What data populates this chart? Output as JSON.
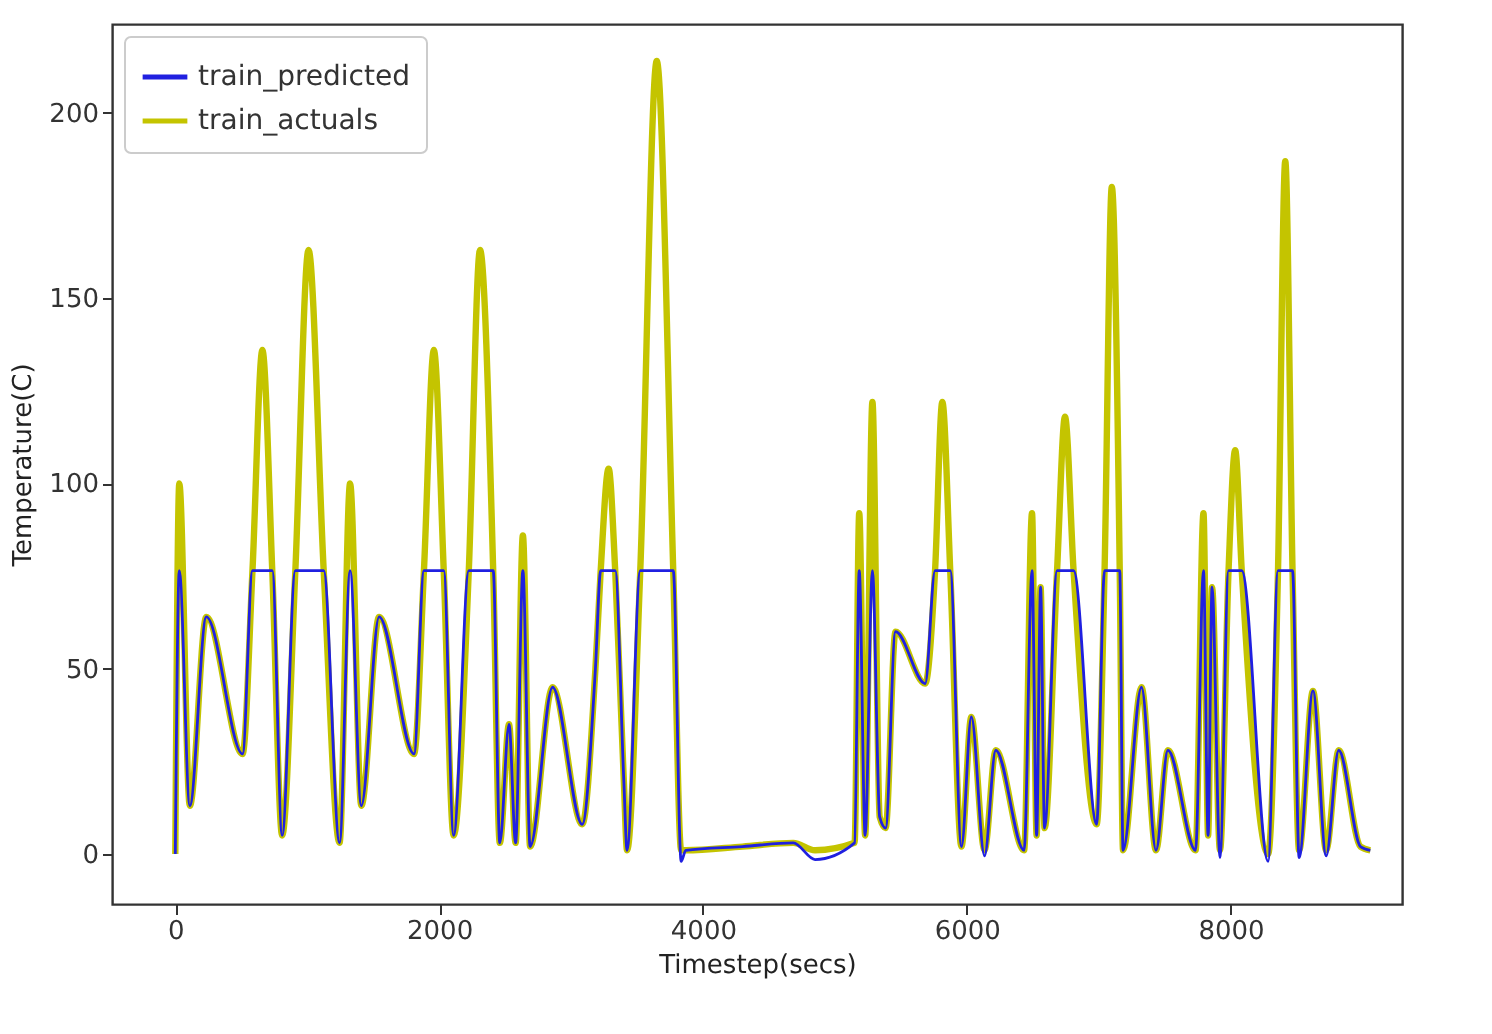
{
  "chart_data": {
    "type": "line",
    "xlabel": "Timestep(secs)",
    "ylabel": "Temperature(C)",
    "xlim": [
      -480,
      9300
    ],
    "ylim": [
      -13.5,
      224
    ],
    "xticks": [
      0,
      2000,
      4000,
      6000,
      8000
    ],
    "yticks": [
      0,
      50,
      100,
      150,
      200
    ],
    "legend": "top left",
    "series": [
      {
        "name": "train_predicted",
        "color": "#2020e0",
        "x": [
          0,
          30,
          110,
          235,
          510,
          585,
          660,
          735,
          810,
          910,
          1010,
          1125,
          1245,
          1325,
          1410,
          1545,
          1810,
          1885,
          1960,
          2035,
          2110,
          2225,
          2310,
          2410,
          2460,
          2530,
          2580,
          2635,
          2690,
          2860,
          3085,
          3185,
          3225,
          3285,
          3335,
          3400,
          3425,
          3525,
          3650,
          3775,
          3835,
          3870,
          4300,
          4685,
          4850,
          5150,
          5185,
          5230,
          5285,
          5340,
          5385,
          5460,
          5685,
          5760,
          5815,
          5875,
          5960,
          6035,
          6135,
          6220,
          6435,
          6495,
          6530,
          6560,
          6590,
          6685,
          6745,
          6810,
          6985,
          7045,
          7100,
          7160,
          7185,
          7325,
          7435,
          7525,
          7735,
          7795,
          7830,
          7860,
          7920,
          7985,
          8035,
          8085,
          8285,
          8360,
          8415,
          8470,
          8520,
          8625,
          8725,
          8820,
          8985,
          9060
        ],
        "values": [
          0,
          76.5,
          13,
          64,
          27,
          76.5,
          76.5,
          76.5,
          5,
          76.5,
          76.5,
          76.5,
          3,
          76.5,
          13,
          64,
          27,
          76.5,
          76.5,
          76.5,
          5,
          76.5,
          76.5,
          76.5,
          3,
          35,
          3,
          76.5,
          2,
          45,
          8,
          50,
          76.5,
          76.5,
          76.5,
          20,
          1,
          76.5,
          76.5,
          76.5,
          -2,
          1,
          2,
          3,
          -1.5,
          3,
          76.5,
          5,
          76.5,
          10,
          7,
          60,
          46,
          76.5,
          76.5,
          76.5,
          2,
          37,
          -0.5,
          28,
          1,
          76.5,
          5,
          72,
          7,
          76.5,
          76.5,
          76.5,
          8,
          76.5,
          76.5,
          76.5,
          1,
          45,
          1,
          28,
          1,
          76.5,
          5,
          72,
          -1,
          76.5,
          76.5,
          76.5,
          -2,
          76.5,
          76.5,
          76.5,
          -1,
          44,
          -0.5,
          28,
          2,
          1
        ]
      },
      {
        "name": "train_actuals",
        "color": "#c4c400",
        "x": [
          0,
          30,
          110,
          235,
          510,
          585,
          660,
          735,
          810,
          910,
          1010,
          1125,
          1245,
          1325,
          1410,
          1545,
          1810,
          1885,
          1960,
          2035,
          2110,
          2225,
          2310,
          2410,
          2460,
          2530,
          2580,
          2635,
          2690,
          2860,
          3085,
          3185,
          3225,
          3285,
          3335,
          3400,
          3425,
          3525,
          3650,
          3775,
          3835,
          3870,
          4300,
          4685,
          4850,
          5150,
          5185,
          5230,
          5285,
          5340,
          5385,
          5460,
          5685,
          5760,
          5815,
          5875,
          5960,
          6035,
          6135,
          6220,
          6435,
          6495,
          6530,
          6560,
          6590,
          6685,
          6745,
          6810,
          6985,
          7045,
          7100,
          7160,
          7185,
          7325,
          7435,
          7525,
          7735,
          7795,
          7830,
          7860,
          7920,
          7985,
          8035,
          8085,
          8285,
          8360,
          8415,
          8470,
          8520,
          8625,
          8725,
          8820,
          8985,
          9060
        ],
        "values": [
          0,
          100,
          13,
          64,
          27,
          76.5,
          136,
          76.5,
          5,
          76.5,
          163,
          76.5,
          3,
          100,
          13,
          64,
          27,
          76.5,
          136,
          76.5,
          5,
          76.5,
          163,
          76.5,
          3,
          35,
          3,
          86,
          2,
          45,
          8,
          50,
          76.5,
          104,
          76.5,
          20,
          1,
          76.5,
          214,
          76.5,
          1,
          1,
          2,
          3,
          1,
          3,
          92,
          5,
          122,
          10,
          7,
          60,
          46,
          76.5,
          122,
          76.5,
          2,
          37,
          1,
          28,
          1,
          92,
          5,
          72,
          7,
          76.5,
          118,
          76.5,
          8,
          76.5,
          180,
          76.5,
          1,
          45,
          1,
          28,
          1,
          92,
          5,
          72,
          1,
          76.5,
          109,
          76.5,
          0,
          76.5,
          187,
          76.5,
          1,
          44,
          1,
          28,
          2,
          1
        ]
      }
    ]
  }
}
